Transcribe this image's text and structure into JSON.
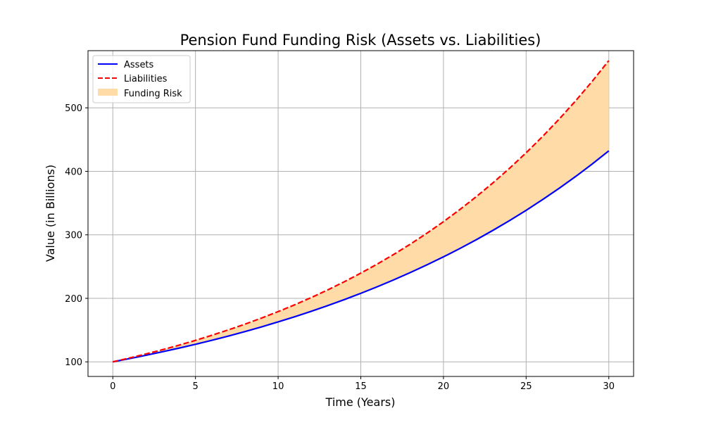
{
  "chart_data": {
    "type": "line",
    "title": "Pension Fund Funding Risk (Assets vs. Liabilities)",
    "xlabel": "Time (Years)",
    "ylabel": "Value (in Billions)",
    "xlim": [
      -1.5,
      31.5
    ],
    "ylim": [
      77,
      590
    ],
    "x_ticks": [
      0,
      5,
      10,
      15,
      20,
      25,
      30
    ],
    "y_ticks": [
      100,
      200,
      300,
      400,
      500
    ],
    "grid": true,
    "legend_position": "top-left",
    "x": [
      0,
      1,
      2,
      3,
      4,
      5,
      6,
      7,
      8,
      9,
      10,
      11,
      12,
      13,
      14,
      15,
      16,
      17,
      18,
      19,
      20,
      21,
      22,
      23,
      24,
      25,
      26,
      27,
      28,
      29,
      30
    ],
    "series": [
      {
        "name": "Assets",
        "color": "#0000ff",
        "style": "solid",
        "values": [
          100.0,
          105.0,
          110.3,
          115.8,
          121.6,
          127.6,
          134.0,
          140.7,
          147.7,
          155.1,
          162.9,
          171.0,
          179.6,
          188.6,
          198.0,
          207.9,
          218.3,
          229.2,
          240.7,
          252.7,
          265.3,
          278.6,
          292.5,
          307.2,
          322.5,
          338.6,
          355.6,
          373.3,
          392.0,
          411.6,
          432.2
        ]
      },
      {
        "name": "Liabilities",
        "color": "#ff0000",
        "style": "dashed",
        "values": [
          100.0,
          106.0,
          112.4,
          119.1,
          126.2,
          133.8,
          141.9,
          150.4,
          159.4,
          169.0,
          179.1,
          189.8,
          201.2,
          213.3,
          226.1,
          239.7,
          254.0,
          269.3,
          285.4,
          302.6,
          320.7,
          340.0,
          360.4,
          382.0,
          404.9,
          429.2,
          455.0,
          482.3,
          511.2,
          541.9,
          574.3
        ]
      }
    ],
    "fill": {
      "name": "Funding Risk",
      "color": "#ffdba8",
      "between": [
        "Assets",
        "Liabilities"
      ]
    }
  }
}
